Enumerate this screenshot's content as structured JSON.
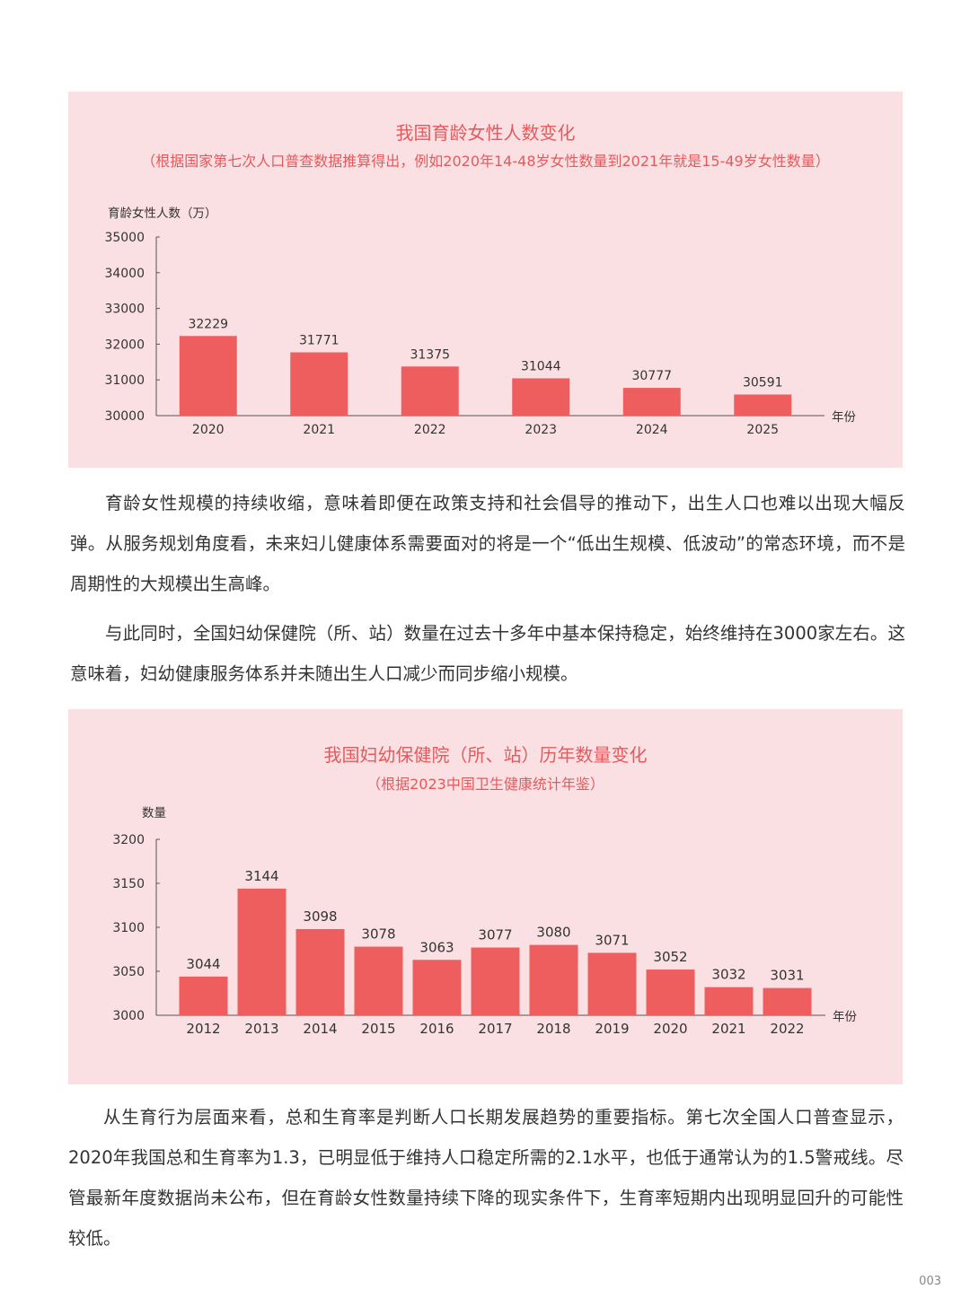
{
  "chart_data": [
    {
      "type": "bar",
      "title": "我国育龄女性人数变化",
      "subtitle": "（根据国家第七次人口普查数据推算得出，例如2020年14-48岁女性数量到2021年就是15-49岁女性数量）",
      "ylabel": "育龄女性人数（万）",
      "xlabel": "年份",
      "ylim": [
        30000,
        35000
      ],
      "yticks": [
        "30000",
        "31000",
        "32000",
        "33000",
        "34000",
        "35000"
      ],
      "categories": [
        "2020",
        "2021",
        "2022",
        "2023",
        "2024",
        "2025"
      ],
      "values": [
        32229,
        31771,
        31375,
        31044,
        30777,
        30591
      ],
      "bar_color": "#ee5e5f",
      "grid": false
    },
    {
      "type": "bar",
      "title": "我国妇幼保健院（所、站）历年数量变化",
      "subtitle": "（根据2023中国卫生健康统计年鉴）",
      "ylabel": "数量",
      "xlabel": "年份",
      "ylim": [
        3000,
        3200
      ],
      "yticks": [
        "3000",
        "3050",
        "3100",
        "3150",
        "3200"
      ],
      "categories": [
        "2012",
        "2013",
        "2014",
        "2015",
        "2016",
        "2017",
        "2018",
        "2019",
        "2020",
        "2021",
        "2022"
      ],
      "values": [
        3044,
        3144,
        3098,
        3078,
        3063,
        3077,
        3080,
        3071,
        3052,
        3032,
        3031
      ],
      "bar_color": "#ee5e5f",
      "grid": false
    }
  ],
  "paragraphs": [
    "育龄女性规模的持续收缩，意味着即便在政策支持和社会倡导的推动下，出生人口也难以出现大幅反弹。从服务规划角度看，未来妇儿健康体系需要面对的将是一个“低出生规模、低波动”的常态环境，而不是周期性的大规模出生高峰。",
    "与此同时，全国妇幼保健院（所、站）数量在过去十多年中基本保持稳定，始终维持在3000家左右。这意味着，妇幼健康服务体系并未随出生人口减少而同步缩小规模。",
    "从生育行为层面来看，总和生育率是判断人口长期发展趋势的重要指标。第七次全国人口普查显示，2020年我国总和生育率为1.3，已明显低于维持人口稳定所需的2.1水平，也低于通常认为的1.5警戒线。尽管最新年度数据尚未公布，但在育龄女性数量持续下降的现实条件下，生育率短期内出现明显回升的可能性较低。"
  ],
  "page_number": "003"
}
